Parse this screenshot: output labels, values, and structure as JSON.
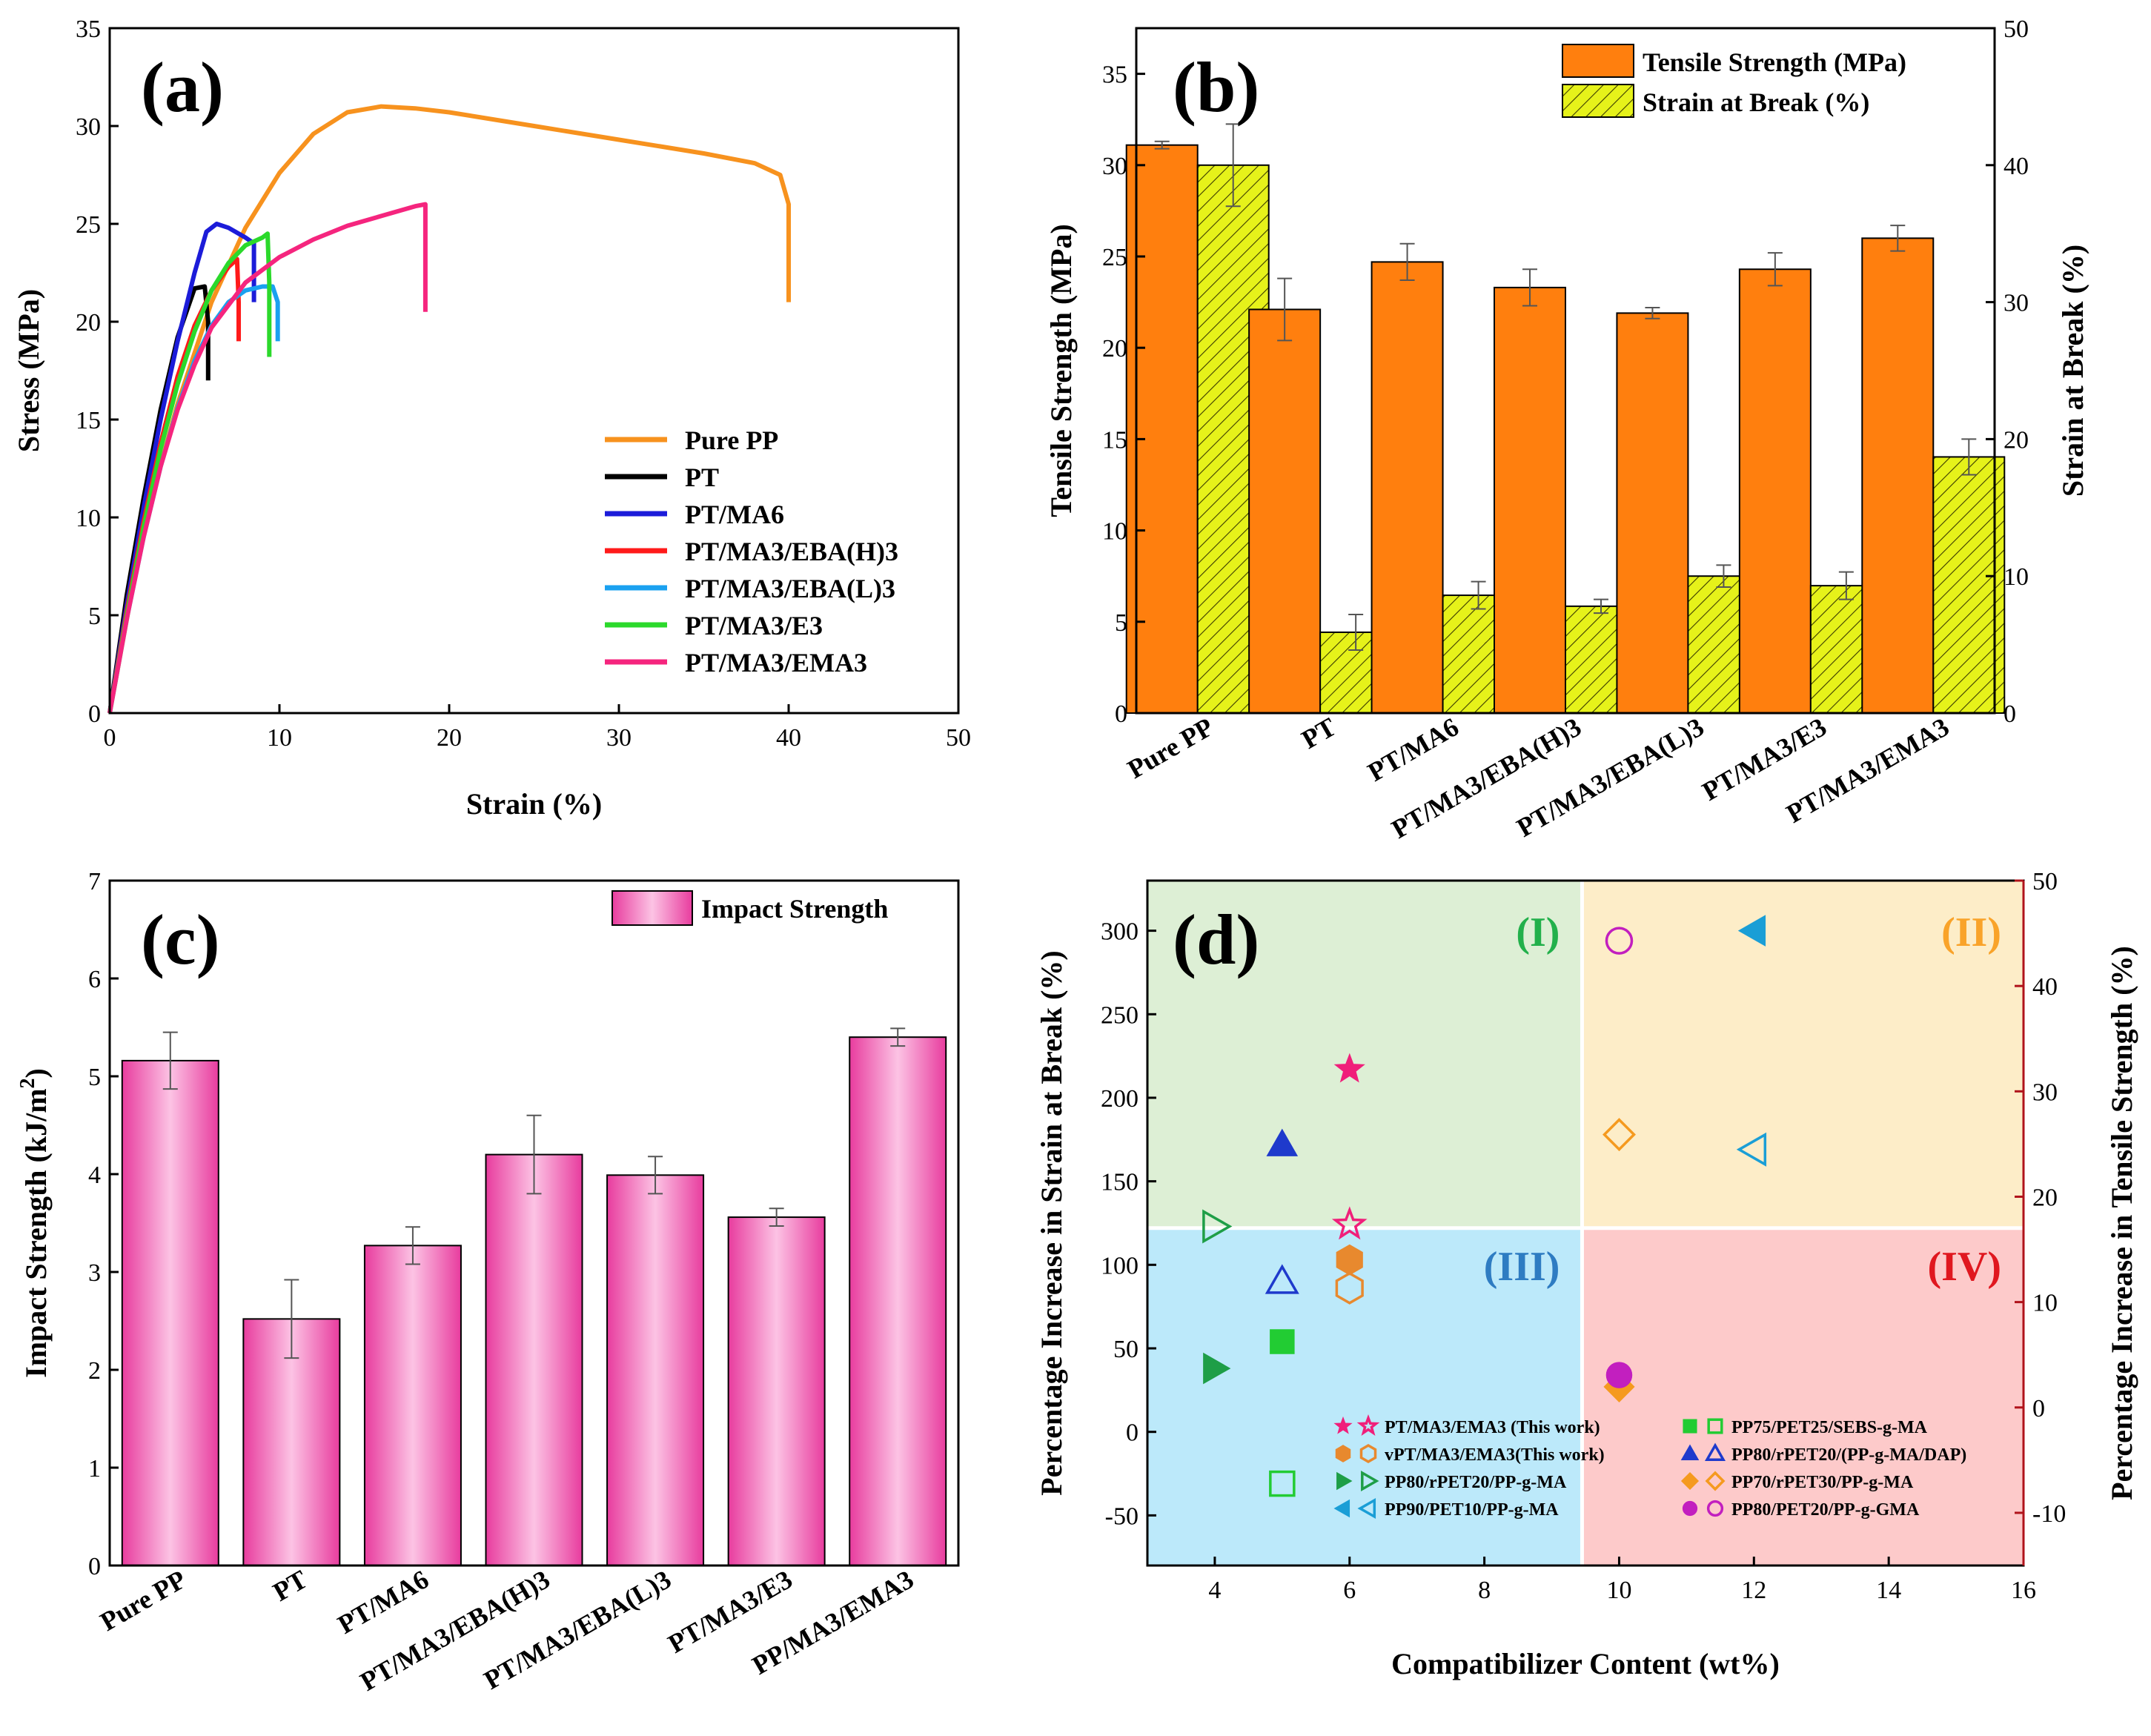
{
  "chart_data": [
    {
      "id": "a",
      "type": "line",
      "panel_label": "(a)",
      "xlabel": "Strain (%)",
      "ylabel": "Stress (MPa)",
      "xlim": [
        0,
        50
      ],
      "ylim": [
        0,
        35
      ],
      "xticks": [
        0,
        10,
        20,
        30,
        40,
        50
      ],
      "yticks": [
        0,
        5,
        10,
        15,
        20,
        25,
        30,
        35
      ],
      "legend_position": "bottom-right",
      "series": [
        {
          "name": "Pure PP",
          "color": "#F7921E",
          "points": [
            [
              0,
              0
            ],
            [
              2,
              9.5
            ],
            [
              4,
              15.8
            ],
            [
              6,
              21
            ],
            [
              8,
              24.8
            ],
            [
              10,
              27.6
            ],
            [
              12,
              29.6
            ],
            [
              14,
              30.7
            ],
            [
              16,
              31
            ],
            [
              18,
              30.9
            ],
            [
              20,
              30.7
            ],
            [
              25,
              30
            ],
            [
              30,
              29.3
            ],
            [
              35,
              28.6
            ],
            [
              38,
              28.1
            ],
            [
              39.5,
              27.5
            ],
            [
              40,
              26
            ],
            [
              40,
              21
            ]
          ]
        },
        {
          "name": "PT",
          "color": "#000000",
          "points": [
            [
              0,
              0
            ],
            [
              1,
              6
            ],
            [
              2,
              11
            ],
            [
              3,
              15.5
            ],
            [
              4,
              19.2
            ],
            [
              5,
              21.7
            ],
            [
              5.6,
              21.8
            ],
            [
              5.8,
              20
            ],
            [
              5.8,
              17
            ]
          ]
        },
        {
          "name": "PT/MA6",
          "color": "#1C1CD9",
          "points": [
            [
              0,
              0
            ],
            [
              1,
              5.5
            ],
            [
              2,
              10.5
            ],
            [
              3,
              15
            ],
            [
              4,
              19
            ],
            [
              5,
              22.5
            ],
            [
              5.7,
              24.6
            ],
            [
              6.3,
              25
            ],
            [
              7,
              24.8
            ],
            [
              8,
              24.3
            ],
            [
              8.5,
              24
            ],
            [
              8.5,
              21
            ]
          ]
        },
        {
          "name": "PT/MA3/EBA(H)3",
          "color": "#FF1A1A",
          "points": [
            [
              0,
              0
            ],
            [
              1,
              5.2
            ],
            [
              2,
              9.8
            ],
            [
              3,
              13.8
            ],
            [
              4,
              17.2
            ],
            [
              5,
              19.8
            ],
            [
              6,
              21.6
            ],
            [
              7,
              22.8
            ],
            [
              7.5,
              23.2
            ],
            [
              7.6,
              21
            ],
            [
              7.6,
              19
            ]
          ]
        },
        {
          "name": "PT/MA3/EBA(L)3",
          "color": "#1AA1F0",
          "points": [
            [
              0,
              0
            ],
            [
              1,
              4.8
            ],
            [
              2,
              9
            ],
            [
              3,
              12.6
            ],
            [
              4,
              15.6
            ],
            [
              5,
              18
            ],
            [
              6,
              19.8
            ],
            [
              7,
              21
            ],
            [
              8,
              21.6
            ],
            [
              9,
              21.8
            ],
            [
              9.6,
              21.8
            ],
            [
              9.9,
              21
            ],
            [
              9.9,
              19
            ]
          ]
        },
        {
          "name": "PT/MA3/E3",
          "color": "#2BD92B",
          "points": [
            [
              0,
              0
            ],
            [
              1,
              5
            ],
            [
              2,
              9.5
            ],
            [
              3,
              13.5
            ],
            [
              4,
              16.8
            ],
            [
              5,
              19.5
            ],
            [
              6,
              21.6
            ],
            [
              7,
              23
            ],
            [
              8,
              23.9
            ],
            [
              9,
              24.3
            ],
            [
              9.3,
              24.5
            ],
            [
              9.4,
              22
            ],
            [
              9.4,
              18.2
            ]
          ]
        },
        {
          "name": "PT/MA3/EMA3",
          "color": "#F5257E",
          "points": [
            [
              0,
              0
            ],
            [
              1,
              4.8
            ],
            [
              2,
              9
            ],
            [
              3,
              12.6
            ],
            [
              4,
              15.5
            ],
            [
              5,
              17.8
            ],
            [
              6,
              19.7
            ],
            [
              8,
              22
            ],
            [
              10,
              23.3
            ],
            [
              12,
              24.2
            ],
            [
              14,
              24.9
            ],
            [
              16,
              25.4
            ],
            [
              18,
              25.9
            ],
            [
              18.6,
              26
            ],
            [
              18.6,
              22
            ],
            [
              18.6,
              20.5
            ]
          ]
        }
      ]
    },
    {
      "id": "b",
      "type": "bar",
      "panel_label": "(b)",
      "categories": [
        "Pure PP",
        "PT",
        "PT/MA6",
        "PT/MA3/EBA(H)3",
        "PT/MA3/EBA(L)3",
        "PT/MA3/E3",
        "PT/MA3/EMA3"
      ],
      "ylabel": "Tensile Strength (MPa)",
      "y2label": "Strain at Break (%)",
      "ylim": [
        0,
        37.5
      ],
      "y2lim": [
        0,
        50
      ],
      "yticks": [
        0,
        5,
        10,
        15,
        20,
        25,
        30,
        35
      ],
      "y2ticks": [
        0,
        10,
        20,
        30,
        40,
        50
      ],
      "legend_position": "top-right",
      "series": [
        {
          "name": "Tensile Strength (MPa)",
          "axis": "left",
          "color": "#FF7F0E",
          "values": [
            31.1,
            22.1,
            24.7,
            23.3,
            21.9,
            24.3,
            26.0
          ],
          "errors": [
            0.2,
            1.7,
            1.0,
            1.0,
            0.3,
            0.9,
            0.7
          ]
        },
        {
          "name": "Strain at Break (%)",
          "axis": "right",
          "color": "#E6F21A",
          "values": [
            40.0,
            5.9,
            8.6,
            7.8,
            10.0,
            9.3,
            18.7
          ],
          "errors": [
            3.0,
            1.3,
            1.0,
            0.5,
            0.8,
            1.0,
            1.3
          ]
        }
      ]
    },
    {
      "id": "c",
      "type": "bar",
      "panel_label": "(c)",
      "categories": [
        "Pure PP",
        "PT",
        "PT/MA6",
        "PT/MA3/EBA(H)3",
        "PT/MA3/EBA(L)3",
        "PT/MA3/E3",
        "PP/MA3/EMA3"
      ],
      "ylabel": "Impact Strength (kJ/m²)",
      "ylabel_main": "Impact Strength (kJ/m",
      "ylabel_sup": "2",
      "ylabel_end": ")",
      "ylim": [
        0,
        7
      ],
      "yticks": [
        0,
        1,
        2,
        3,
        4,
        5,
        6,
        7
      ],
      "legend_position": "top-right",
      "series": [
        {
          "name": "Impact Strength",
          "color": "#F06AB8",
          "values": [
            5.16,
            2.52,
            3.27,
            4.2,
            3.99,
            3.56,
            5.4
          ],
          "errors": [
            0.29,
            0.4,
            0.19,
            0.4,
            0.19,
            0.09,
            0.09
          ]
        }
      ]
    },
    {
      "id": "d",
      "type": "scatter",
      "panel_label": "(d)",
      "xlabel": "Compatibilizer Content (wt%)",
      "ylabel": "Percentage Increase in Strain at Break (%)",
      "y2label": "Percentage Increase in Tensile Strength (%)",
      "xlim": [
        3,
        16
      ],
      "ylim": [
        -80,
        330
      ],
      "y2lim": [
        -15,
        50
      ],
      "xticks": [
        4,
        6,
        8,
        10,
        12,
        14,
        16
      ],
      "yticks": [
        -50,
        0,
        50,
        100,
        150,
        200,
        250,
        300
      ],
      "y2ticks": [
        -10,
        0,
        10,
        20,
        30,
        40,
        50
      ],
      "quadrants": [
        {
          "label": "(I)",
          "color": "#22B04B",
          "fill": "#DDEFD5"
        },
        {
          "label": "(II)",
          "color": "#F9A32A",
          "fill": "#FDEDC8"
        },
        {
          "label": "(III)",
          "color": "#2E7CC2",
          "fill": "#BCE9FA"
        },
        {
          "label": "(IV)",
          "color": "#E0171F",
          "fill": "#FDCACA"
        }
      ],
      "quadrant_divider": {
        "x": 9.45,
        "y": 122
      },
      "legend_position": "bottom-right",
      "legend": [
        {
          "label": "PT/MA3/EMA3 (This work)",
          "marker": "star",
          "color": "#F01F7A"
        },
        {
          "label": "vPT/MA3/EMA3(This work)",
          "marker": "hexagon",
          "color": "#E8892E"
        },
        {
          "label": "PP80/rPET20/PP-g-MA",
          "marker": "tri-right",
          "color": "#1E9E47"
        },
        {
          "label": "PP90/PET10/PP-g-MA",
          "marker": "tri-left",
          "color": "#1A9ED6"
        },
        {
          "label": "PP75/PET25/SEBS-g-MA",
          "marker": "square",
          "color": "#22CC33"
        },
        {
          "label": "PP80/rPET20/(PP-g-MA/DAP)",
          "marker": "tri-up",
          "color": "#1E3ACC"
        },
        {
          "label": "PP70/rPET30/PP-g-MA",
          "marker": "diamond",
          "color": "#F59A1F"
        },
        {
          "label": "PP80/PET20/PP-g-GMA",
          "marker": "circle",
          "color": "#C21FBF"
        }
      ],
      "points": [
        {
          "marker": "star",
          "filled": true,
          "color": "#F01F7A",
          "x": 6,
          "y": 217
        },
        {
          "marker": "star",
          "filled": false,
          "color": "#F01F7A",
          "x": 6,
          "y": 124
        },
        {
          "marker": "hexagon",
          "filled": true,
          "color": "#E8892E",
          "x": 6,
          "y": 103
        },
        {
          "marker": "hexagon",
          "filled": false,
          "color": "#E8892E",
          "x": 6,
          "y": 86
        },
        {
          "marker": "tri-right",
          "filled": true,
          "color": "#1E9E47",
          "x": 4,
          "y": 38
        },
        {
          "marker": "tri-right",
          "filled": false,
          "color": "#1E9E47",
          "x": 4,
          "y": 123
        },
        {
          "marker": "tri-left",
          "filled": true,
          "color": "#1A9ED6",
          "x": 12,
          "y": 300
        },
        {
          "marker": "tri-left",
          "filled": false,
          "color": "#1A9ED6",
          "x": 12,
          "y": 169
        },
        {
          "marker": "square",
          "filled": true,
          "color": "#22CC33",
          "x": 5,
          "y": 54
        },
        {
          "marker": "square",
          "filled": false,
          "color": "#22CC33",
          "x": 5,
          "y": -31
        },
        {
          "marker": "tri-up",
          "filled": true,
          "color": "#1E3ACC",
          "x": 5,
          "y": 172
        },
        {
          "marker": "tri-up",
          "filled": false,
          "color": "#1E3ACC",
          "x": 5,
          "y": 90
        },
        {
          "marker": "diamond",
          "filled": true,
          "color": "#F59A1F",
          "x": 10,
          "y": 27
        },
        {
          "marker": "diamond",
          "filled": false,
          "color": "#F59A1F",
          "x": 10,
          "y": 178
        },
        {
          "marker": "circle",
          "filled": true,
          "color": "#C21FBF",
          "x": 10,
          "y": 34
        },
        {
          "marker": "circle",
          "filled": false,
          "color": "#C21FBF",
          "x": 10,
          "y": 294
        }
      ]
    }
  ]
}
